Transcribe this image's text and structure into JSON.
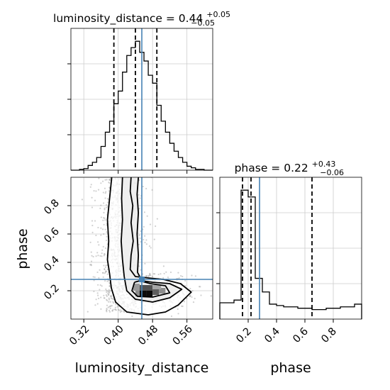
{
  "chart_data": {
    "type": "corner",
    "parameters": [
      "luminosity_distance",
      "phase"
    ],
    "panels": [
      {
        "id": "hist-luminosity_distance",
        "type": "histogram",
        "param": "luminosity_distance",
        "title": {
          "prefix": "luminosity_distance = 0.44",
          "plus": "+0.05",
          "minus": "−0.05"
        },
        "xlim": [
          0.29,
          0.62
        ],
        "bin_edges": [
          0.29,
          0.3,
          0.31,
          0.32,
          0.33,
          0.34,
          0.35,
          0.36,
          0.37,
          0.38,
          0.39,
          0.4,
          0.41,
          0.42,
          0.43,
          0.44,
          0.45,
          0.46,
          0.47,
          0.48,
          0.49,
          0.5,
          0.51,
          0.52,
          0.53,
          0.54,
          0.55,
          0.56,
          0.57,
          0.58,
          0.59,
          0.6,
          0.61,
          0.62
        ],
        "counts": [
          0,
          0,
          1,
          2,
          6,
          10,
          16,
          30,
          48,
          62,
          84,
          100,
          124,
          145,
          155,
          163,
          149,
          138,
          120,
          110,
          82,
          62,
          48,
          34,
          24,
          16,
          10,
          5,
          3,
          1,
          1,
          0,
          0
        ],
        "quantile_lines": [
          0.39,
          0.44,
          0.49
        ],
        "truth": 0.455
      },
      {
        "id": "hist-phase",
        "type": "histogram",
        "param": "phase",
        "title": {
          "prefix": "phase = 0.22",
          "plus": "+0.43",
          "minus": "−0.06"
        },
        "xlim": [
          0.0,
          1.0
        ],
        "bin_edges": [
          0.0,
          0.05,
          0.1,
          0.15,
          0.2,
          0.25,
          0.3,
          0.35,
          0.4,
          0.45,
          0.5,
          0.55,
          0.6,
          0.65,
          0.7,
          0.75,
          0.8,
          0.85,
          0.9,
          0.95,
          1.0
        ],
        "counts": [
          12,
          12,
          14,
          95,
          90,
          30,
          20,
          11,
          10,
          9,
          9,
          8,
          8,
          7,
          7,
          8,
          8,
          9,
          9,
          11
        ],
        "quantile_lines": [
          0.16,
          0.22,
          0.65
        ],
        "truth": 0.28
      },
      {
        "id": "joint-luminosity_distance-phase",
        "type": "2d-density",
        "x": "luminosity_distance",
        "y": "phase",
        "xlim": [
          0.29,
          0.62
        ],
        "ylim": [
          0.0,
          1.0
        ],
        "truth": [
          0.455,
          0.28
        ],
        "contours": [
          [
            [
              0.385,
              1.0
            ],
            [
              0.38,
              0.85
            ],
            [
              0.375,
              0.7
            ],
            [
              0.378,
              0.55
            ],
            [
              0.375,
              0.42
            ],
            [
              0.38,
              0.32
            ],
            [
              0.384,
              0.22
            ],
            [
              0.394,
              0.12
            ],
            [
              0.42,
              0.05
            ],
            [
              0.47,
              0.03
            ],
            [
              0.51,
              0.05
            ],
            [
              0.54,
              0.1
            ],
            [
              0.57,
              0.19
            ],
            [
              0.545,
              0.25
            ],
            [
              0.505,
              0.28
            ],
            [
              0.47,
              0.29
            ],
            [
              0.44,
              0.3
            ],
            [
              0.428,
              0.35
            ],
            [
              0.43,
              0.45
            ],
            [
              0.435,
              0.55
            ],
            [
              0.43,
              0.68
            ],
            [
              0.434,
              0.8
            ],
            [
              0.428,
              0.9
            ],
            [
              0.43,
              1.0
            ]
          ],
          [
            [
              0.41,
              1.0
            ],
            [
              0.408,
              0.85
            ],
            [
              0.41,
              0.7
            ],
            [
              0.407,
              0.55
            ],
            [
              0.41,
              0.42
            ],
            [
              0.414,
              0.3
            ],
            [
              0.42,
              0.2
            ],
            [
              0.44,
              0.14
            ],
            [
              0.48,
              0.12
            ],
            [
              0.52,
              0.15
            ],
            [
              0.548,
              0.21
            ],
            [
              0.52,
              0.25
            ],
            [
              0.48,
              0.26
            ],
            [
              0.455,
              0.27
            ],
            [
              0.445,
              0.33
            ],
            [
              0.447,
              0.45
            ],
            [
              0.444,
              0.6
            ],
            [
              0.447,
              0.75
            ],
            [
              0.444,
              0.88
            ],
            [
              0.447,
              1.0
            ]
          ],
          [
            [
              0.438,
              0.26
            ],
            [
              0.432,
              0.2
            ],
            [
              0.445,
              0.16
            ],
            [
              0.48,
              0.155
            ],
            [
              0.52,
              0.185
            ],
            [
              0.51,
              0.235
            ],
            [
              0.475,
              0.25
            ],
            [
              0.45,
              0.27
            ],
            [
              0.438,
              0.26
            ]
          ]
        ],
        "density_cells": [
          {
            "x": [
              0.44,
              0.45
            ],
            "y": [
              0.16,
              0.22
            ],
            "level": 0.4
          },
          {
            "x": [
              0.45,
              0.465
            ],
            "y": [
              0.16,
              0.2
            ],
            "level": 0.95
          },
          {
            "x": [
              0.465,
              0.48
            ],
            "y": [
              0.16,
              0.2
            ],
            "level": 0.95
          },
          {
            "x": [
              0.48,
              0.495
            ],
            "y": [
              0.17,
              0.21
            ],
            "level": 0.6
          },
          {
            "x": [
              0.495,
              0.51
            ],
            "y": [
              0.18,
              0.22
            ],
            "level": 0.4
          },
          {
            "x": [
              0.45,
              0.48
            ],
            "y": [
              0.2,
              0.24
            ],
            "level": 0.65
          },
          {
            "x": [
              0.435,
              0.45
            ],
            "y": [
              0.2,
              0.25
            ],
            "level": 0.35
          },
          {
            "x": [
              0.48,
              0.5
            ],
            "y": [
              0.21,
              0.24
            ],
            "level": 0.3
          }
        ],
        "xticks": [
          0.32,
          0.4,
          0.48,
          0.56
        ],
        "xtick_labels": [
          "0.32",
          "0.40",
          "0.48",
          "0.56"
        ],
        "yticks": [
          0.2,
          0.4,
          0.6,
          0.8
        ],
        "ytick_labels": [
          "0.2",
          "0.4",
          "0.6",
          "0.8"
        ],
        "xlabel": "luminosity_distance",
        "ylabel": "phase"
      }
    ],
    "phase_xticks": [
      0.2,
      0.4,
      0.6,
      0.8
    ],
    "phase_xtick_labels": [
      "0.2",
      "0.4",
      "0.6",
      "0.8"
    ],
    "phase_xlabel": "phase",
    "grid": true,
    "colors": {
      "truth": "#4682b4",
      "line": "#000000",
      "scatter": "#9a9a9a",
      "grid": "#cccccc"
    }
  }
}
